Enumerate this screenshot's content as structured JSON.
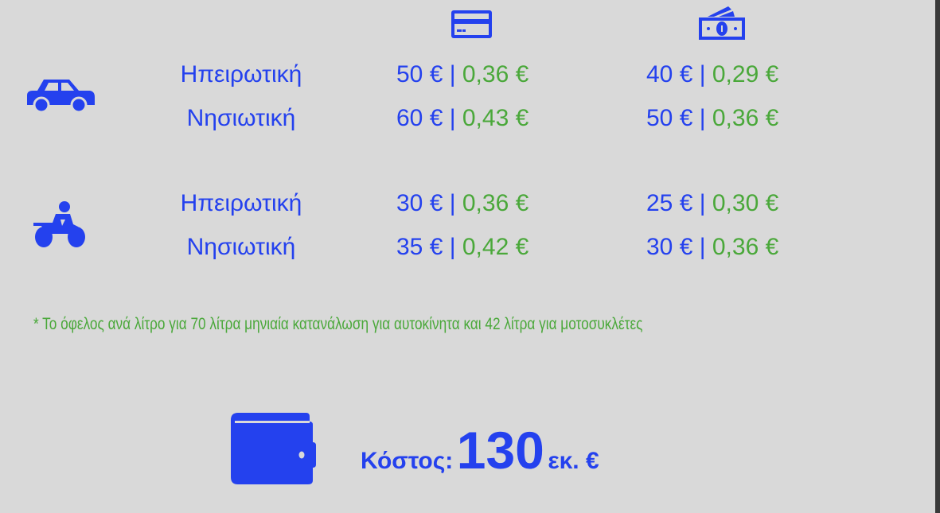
{
  "colors": {
    "primary": "#2441ee",
    "secondary": "#4aa83a",
    "background": "#d9d9d9"
  },
  "columns": [
    {
      "icon": "credit-card-icon"
    },
    {
      "icon": "cash-icon"
    }
  ],
  "groups": [
    {
      "icon": "car-icon",
      "rows": [
        {
          "label": "Ηπειρωτική",
          "card": {
            "price": "50 €",
            "benefit": "0,36 €"
          },
          "cash": {
            "price": "40 €",
            "benefit": "0,29 €"
          }
        },
        {
          "label": "Νησιωτική",
          "card": {
            "price": "60 €",
            "benefit": "0,43 €"
          },
          "cash": {
            "price": "50 €",
            "benefit": "0,36 €"
          }
        }
      ]
    },
    {
      "icon": "motorcycle-icon",
      "rows": [
        {
          "label": "Ηπειρωτική",
          "card": {
            "price": "30 €",
            "benefit": "0,36 €"
          },
          "cash": {
            "price": "25 €",
            "benefit": "0,30 €"
          }
        },
        {
          "label": "Νησιωτική",
          "card": {
            "price": "35 €",
            "benefit": "0,42 €"
          },
          "cash": {
            "price": "30 €",
            "benefit": "0,36 €"
          }
        }
      ]
    }
  ],
  "separator": " | ",
  "footnote": "* Το όφελος ανά λίτρο για 70 λίτρα μηνιαία κατανάλωση για αυτοκίνητα και 42 λίτρα για μοτοσυκλέτες",
  "cost": {
    "icon": "wallet-icon",
    "label": "Κόστος:",
    "amount": "130",
    "unit": "εκ. €"
  }
}
